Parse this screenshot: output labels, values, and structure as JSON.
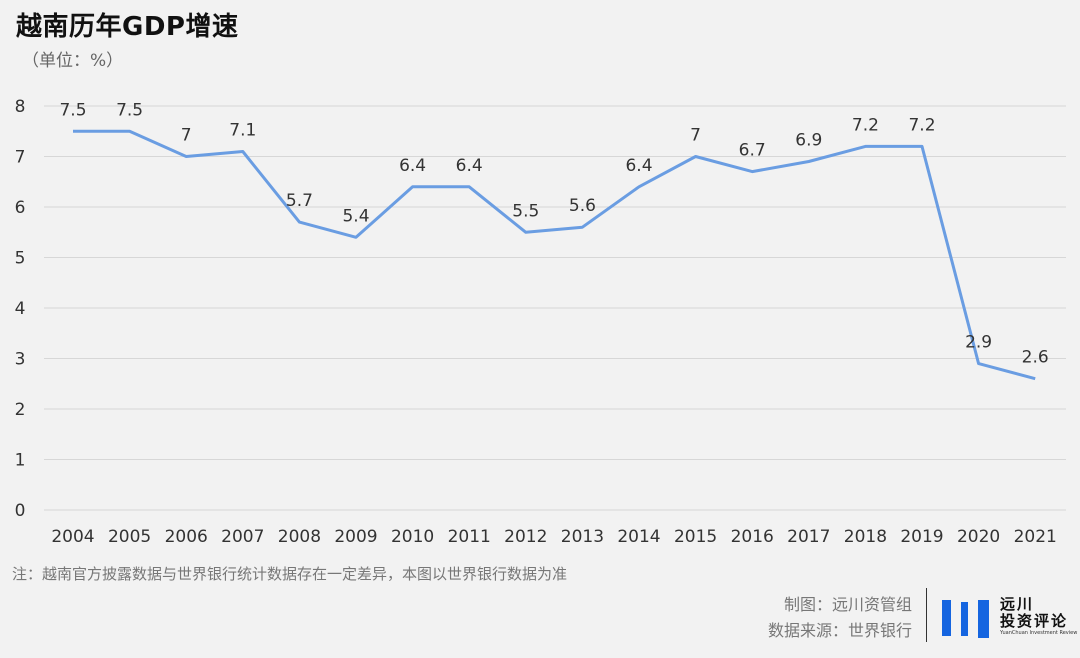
{
  "header": {
    "title": "越南历年GDP增速",
    "unit": "（单位：%）"
  },
  "chart_data": {
    "type": "line",
    "title": "越南历年GDP增速",
    "ylabel": "（单位：%）",
    "xlabel": "",
    "x": [
      "2004",
      "2005",
      "2006",
      "2007",
      "2008",
      "2009",
      "2010",
      "2011",
      "2012",
      "2013",
      "2014",
      "2015",
      "2016",
      "2017",
      "2018",
      "2019",
      "2020",
      "2021"
    ],
    "series": [
      {
        "values": [
          7.5,
          7.5,
          7,
          7.1,
          5.7,
          5.4,
          6.4,
          6.4,
          5.5,
          5.6,
          6.4,
          7,
          6.7,
          6.9,
          7.2,
          7.2,
          2.9,
          2.6
        ],
        "labels": [
          "7.5",
          "7.5",
          "7",
          "7.1",
          "5.7",
          "5.4",
          "6.4",
          "6.4",
          "5.5",
          "5.6",
          "6.4",
          "7",
          "6.7",
          "6.9",
          "7.2",
          "7.2",
          "2.9",
          "2.6"
        ],
        "color": "#6a9de2"
      }
    ],
    "ylim": [
      0,
      8
    ],
    "yticks": [
      "0",
      "1",
      "2",
      "3",
      "4",
      "5",
      "6",
      "7",
      "8"
    ],
    "grid": true,
    "gridColor": "#d7d7d7",
    "legend": "none"
  },
  "footer": {
    "note": "注：越南官方披露数据与世界银行统计数据存在一定差异，本图以世界银行数据为准",
    "maker": "制图：远川资管组",
    "source": "数据来源：世界银行"
  },
  "logo": {
    "line1": "远川",
    "line2": "投资评论",
    "line3": "YuanChuan Investment Review",
    "color": "#1565e0"
  }
}
